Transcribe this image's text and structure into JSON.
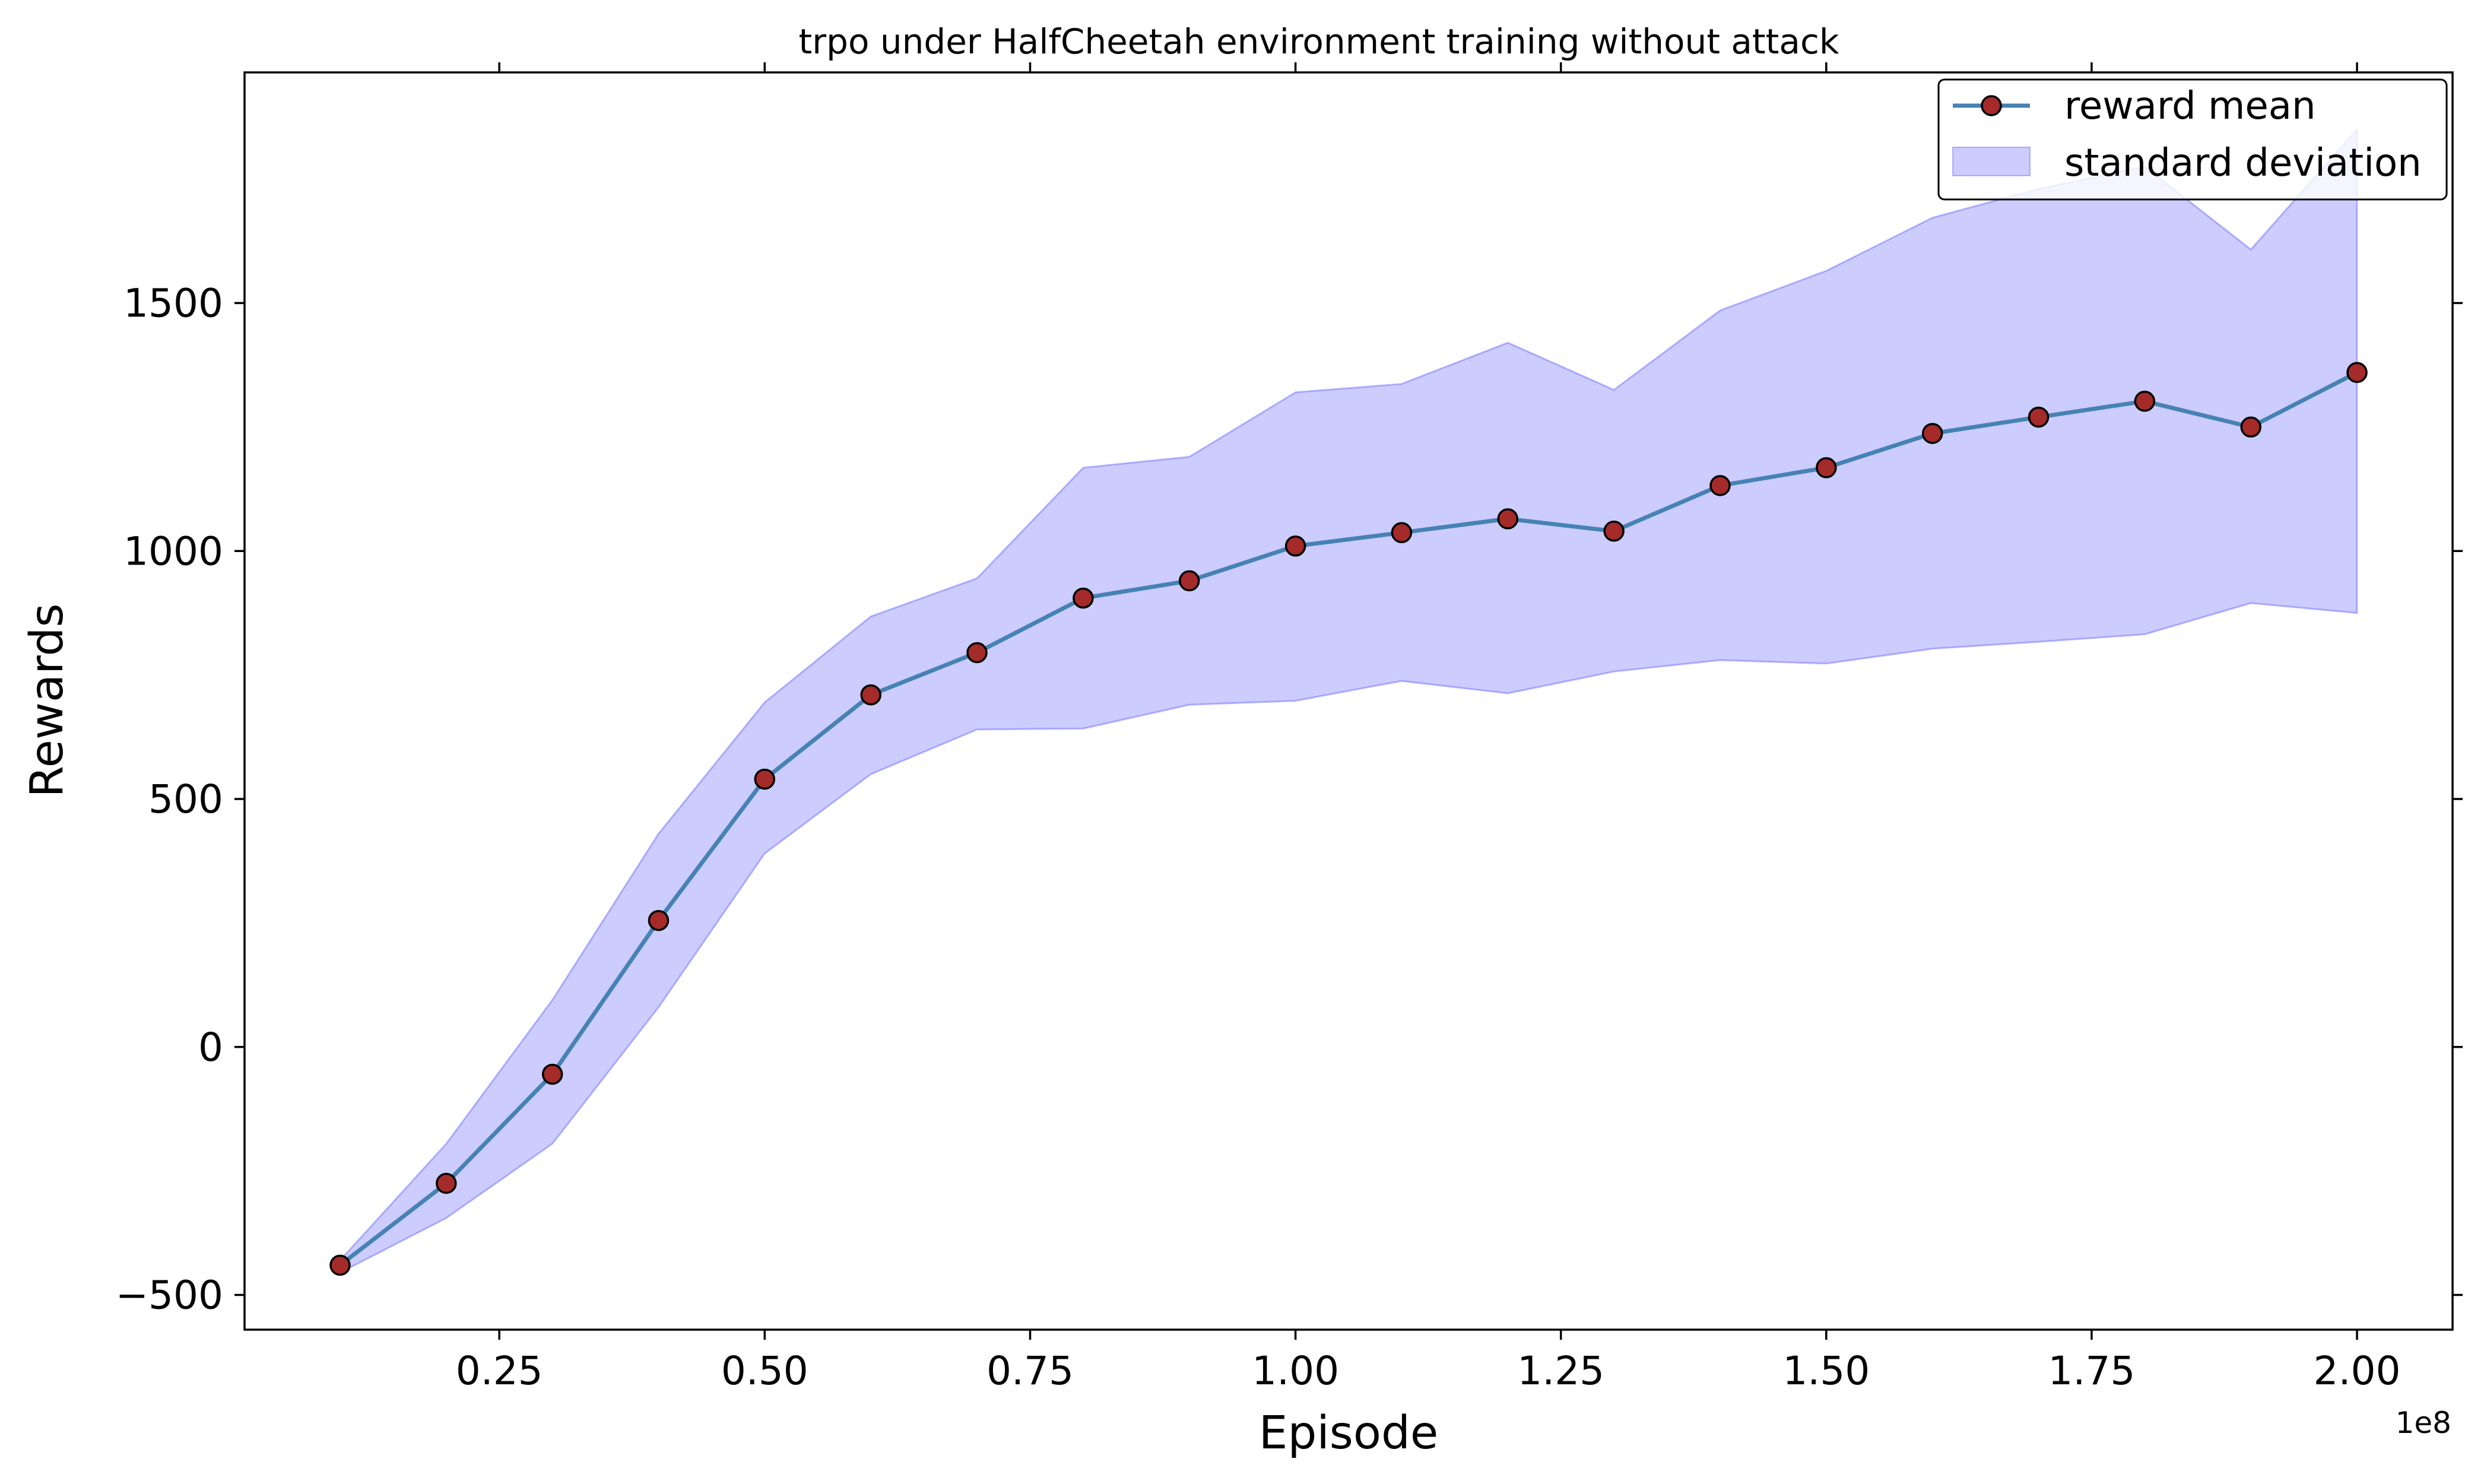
{
  "chart_data": {
    "type": "line",
    "title": "trpo under HalfCheetah environment training without attack",
    "xlabel": "Episode",
    "ylabel": "Rewards",
    "x_offset_label": "1e8",
    "xlim": [
      0.01,
      2.09
    ],
    "ylim": [
      -570,
      1965
    ],
    "x": [
      0.1,
      0.2,
      0.3,
      0.4,
      0.5,
      0.6,
      0.7,
      0.8,
      0.9,
      1.0,
      1.1,
      1.2,
      1.3,
      1.4,
      1.5,
      1.6,
      1.7,
      1.8,
      1.9,
      2.0
    ],
    "x_ticks": [
      0.25,
      0.5,
      0.75,
      1.0,
      1.25,
      1.5,
      1.75,
      2.0
    ],
    "x_tick_labels": [
      "0.25",
      "0.50",
      "0.75",
      "1.00",
      "1.25",
      "1.50",
      "1.75",
      "2.00"
    ],
    "y_ticks": [
      -500,
      0,
      500,
      1000,
      1500
    ],
    "y_tick_labels": [
      "−500",
      "0",
      "500",
      "1000",
      "1500"
    ],
    "grid": false,
    "legend_position": "top-right",
    "series": [
      {
        "name": "reward mean",
        "kind": "line-marker",
        "line_color": "#4682b4",
        "marker_color": "#a52a2a",
        "values": [
          -440,
          -275,
          -55,
          255,
          540,
          710,
          795,
          905,
          940,
          1010,
          1037,
          1065,
          1040,
          1132,
          1168,
          1237,
          1270,
          1302,
          1250,
          1360
        ]
      },
      {
        "name": "standard deviation",
        "kind": "band",
        "fill_color": "#0000ff",
        "fill_opacity": 0.2,
        "upper": [
          -430,
          -195,
          95,
          430,
          695,
          868,
          945,
          1168,
          1190,
          1320,
          1337,
          1420,
          1325,
          1485,
          1565,
          1672,
          1730,
          1775,
          1608,
          1850
        ],
        "lower": [
          -455,
          -345,
          -195,
          80,
          390,
          550,
          640,
          642,
          690,
          698,
          738,
          713,
          757,
          780,
          773,
          803,
          817,
          832,
          895,
          875
        ]
      }
    ]
  }
}
